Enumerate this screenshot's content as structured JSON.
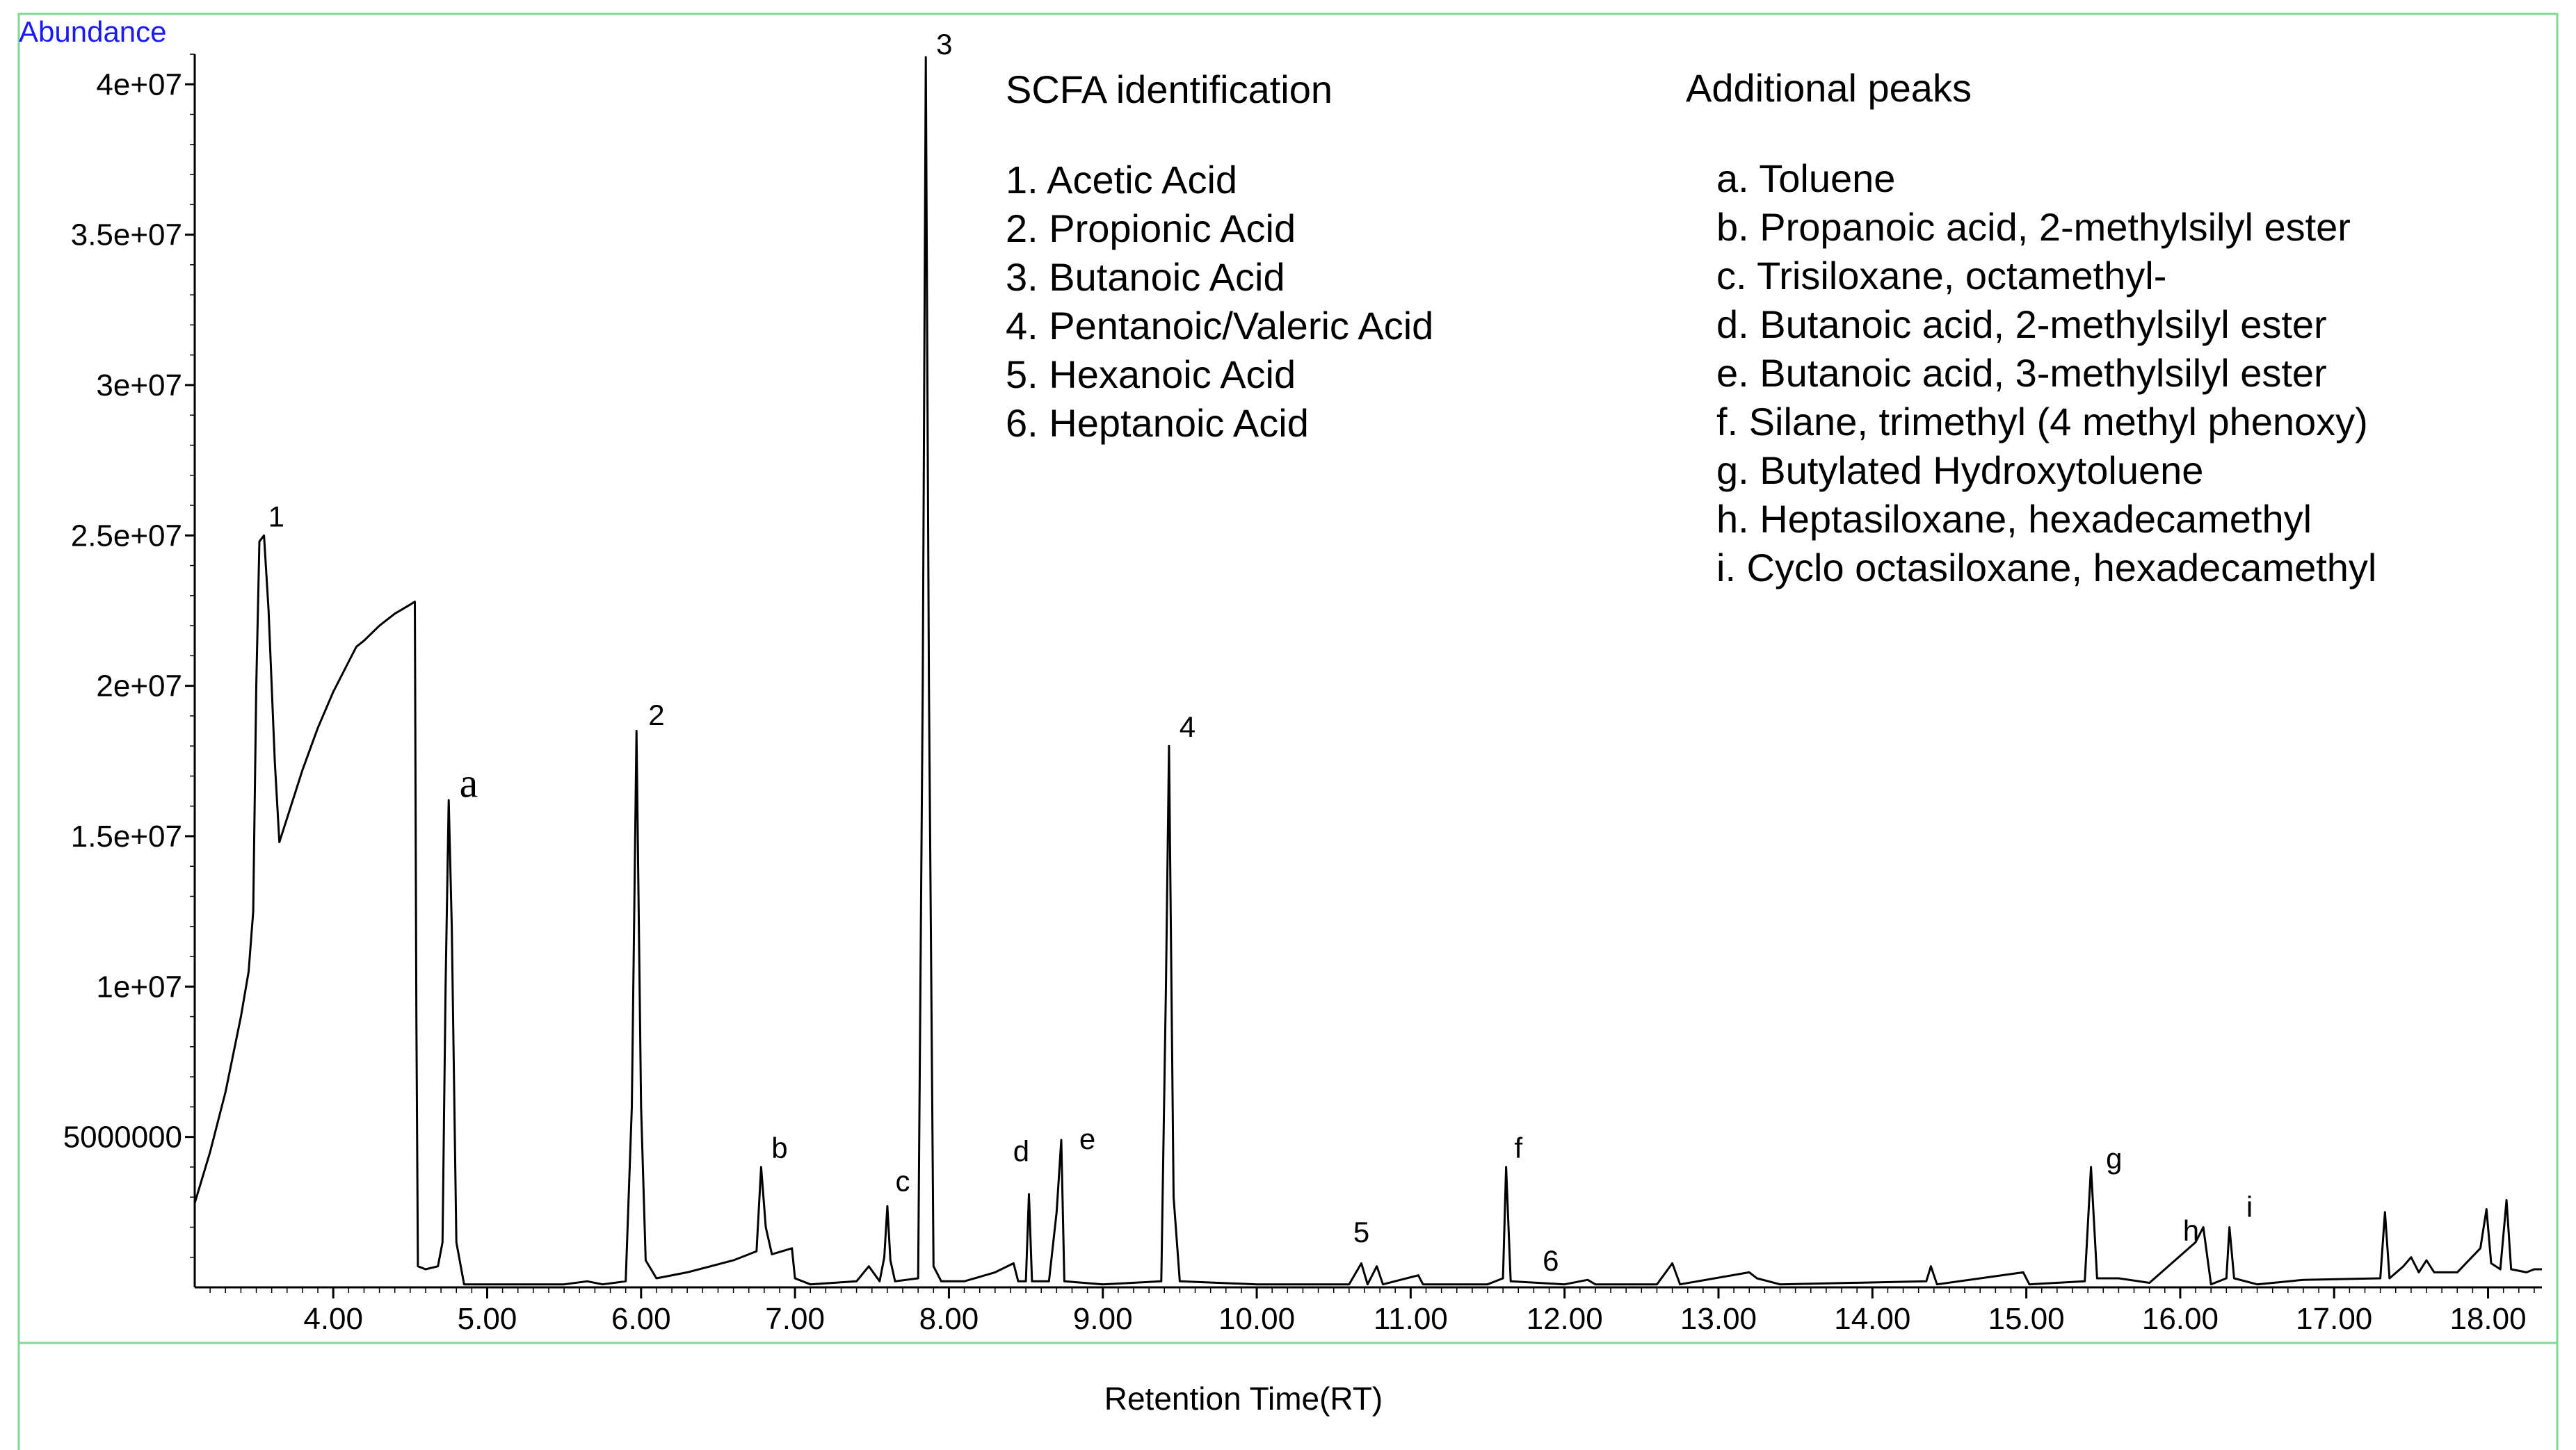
{
  "chart_data": {
    "type": "line",
    "title": "",
    "xlabel": "Retention Time(RT)",
    "ylabel": "Abundance",
    "xlim": [
      3.1,
      18.35
    ],
    "ylim": [
      0,
      41000000
    ],
    "x_ticks": [
      {
        "value": 4,
        "label": "4.00"
      },
      {
        "value": 5,
        "label": "5.00"
      },
      {
        "value": 6,
        "label": "6.00"
      },
      {
        "value": 7,
        "label": "7.00"
      },
      {
        "value": 8,
        "label": "8.00"
      },
      {
        "value": 9,
        "label": "9.00"
      },
      {
        "value": 10,
        "label": "10.00"
      },
      {
        "value": 11,
        "label": "11.00"
      },
      {
        "value": 12,
        "label": "12.00"
      },
      {
        "value": 13,
        "label": "13.00"
      },
      {
        "value": 14,
        "label": "14.00"
      },
      {
        "value": 15,
        "label": "15.00"
      },
      {
        "value": 16,
        "label": "16.00"
      },
      {
        "value": 17,
        "label": "17.00"
      },
      {
        "value": 18,
        "label": "18.00"
      }
    ],
    "y_ticks": [
      {
        "value": 5000000,
        "label": "5000000"
      },
      {
        "value": 10000000,
        "label": "1e+07"
      },
      {
        "value": 15000000,
        "label": "1.5e+07"
      },
      {
        "value": 20000000,
        "label": "2e+07"
      },
      {
        "value": 25000000,
        "label": "2.5e+07"
      },
      {
        "value": 30000000,
        "label": "3e+07"
      },
      {
        "value": 35000000,
        "label": "3.5e+07"
      },
      {
        "value": 40000000,
        "label": "4e+07"
      }
    ],
    "series": [
      {
        "points": [
          [
            3.1,
            2800000
          ],
          [
            3.2,
            4500000
          ],
          [
            3.3,
            6500000
          ],
          [
            3.4,
            9000000
          ],
          [
            3.45,
            10500000
          ],
          [
            3.48,
            12500000
          ],
          [
            3.5,
            20000000
          ],
          [
            3.52,
            24800000
          ],
          [
            3.55,
            25000000
          ],
          [
            3.58,
            22500000
          ],
          [
            3.62,
            17500000
          ],
          [
            3.65,
            14800000
          ],
          [
            3.7,
            15600000
          ],
          [
            3.8,
            17200000
          ],
          [
            3.9,
            18600000
          ],
          [
            4.0,
            19800000
          ],
          [
            4.1,
            20800000
          ],
          [
            4.15,
            21300000
          ],
          [
            4.2,
            21500000
          ],
          [
            4.3,
            22000000
          ],
          [
            4.4,
            22400000
          ],
          [
            4.5,
            22700000
          ],
          [
            4.53,
            22800000
          ],
          [
            4.54,
            9000000
          ],
          [
            4.55,
            700000
          ],
          [
            4.6,
            600000
          ],
          [
            4.68,
            700000
          ],
          [
            4.71,
            1500000
          ],
          [
            4.73,
            10000000
          ],
          [
            4.75,
            16200000
          ],
          [
            4.77,
            12000000
          ],
          [
            4.8,
            1500000
          ],
          [
            4.85,
            100000
          ],
          [
            5.0,
            100000
          ],
          [
            5.5,
            100000
          ],
          [
            5.65,
            200000
          ],
          [
            5.75,
            100000
          ],
          [
            5.9,
            200000
          ],
          [
            5.94,
            6000000
          ],
          [
            5.97,
            18500000
          ],
          [
            6.0,
            6000000
          ],
          [
            6.03,
            900000
          ],
          [
            6.1,
            300000
          ],
          [
            6.3,
            500000
          ],
          [
            6.6,
            900000
          ],
          [
            6.75,
            1200000
          ],
          [
            6.78,
            4000000
          ],
          [
            6.81,
            2000000
          ],
          [
            6.85,
            1100000
          ],
          [
            6.98,
            1300000
          ],
          [
            7.0,
            300000
          ],
          [
            7.1,
            100000
          ],
          [
            7.4,
            200000
          ],
          [
            7.48,
            700000
          ],
          [
            7.55,
            200000
          ],
          [
            7.58,
            1000000
          ],
          [
            7.6,
            2700000
          ],
          [
            7.62,
            900000
          ],
          [
            7.65,
            200000
          ],
          [
            7.8,
            300000
          ],
          [
            7.83,
            20000000
          ],
          [
            7.85,
            40900000
          ],
          [
            7.87,
            20000000
          ],
          [
            7.9,
            700000
          ],
          [
            7.95,
            200000
          ],
          [
            8.1,
            200000
          ],
          [
            8.3,
            500000
          ],
          [
            8.42,
            800000
          ],
          [
            8.45,
            200000
          ],
          [
            8.5,
            200000
          ],
          [
            8.52,
            3100000
          ],
          [
            8.54,
            200000
          ],
          [
            8.65,
            200000
          ],
          [
            8.7,
            2500000
          ],
          [
            8.73,
            4900000
          ],
          [
            8.75,
            200000
          ],
          [
            9.0,
            100000
          ],
          [
            9.38,
            200000
          ],
          [
            9.41,
            10000000
          ],
          [
            9.43,
            18000000
          ],
          [
            9.46,
            3000000
          ],
          [
            9.5,
            200000
          ],
          [
            10.0,
            100000
          ],
          [
            10.6,
            100000
          ],
          [
            10.68,
            800000
          ],
          [
            10.72,
            100000
          ],
          [
            10.78,
            700000
          ],
          [
            10.82,
            100000
          ],
          [
            11.05,
            400000
          ],
          [
            11.08,
            100000
          ],
          [
            11.5,
            100000
          ],
          [
            11.6,
            300000
          ],
          [
            11.62,
            4000000
          ],
          [
            11.65,
            200000
          ],
          [
            12.0,
            100000
          ],
          [
            12.15,
            250000
          ],
          [
            12.2,
            100000
          ],
          [
            12.6,
            100000
          ],
          [
            12.7,
            800000
          ],
          [
            12.75,
            100000
          ],
          [
            13.2,
            500000
          ],
          [
            13.25,
            300000
          ],
          [
            13.4,
            100000
          ],
          [
            14.35,
            200000
          ],
          [
            14.38,
            700000
          ],
          [
            14.42,
            100000
          ],
          [
            14.98,
            500000
          ],
          [
            15.02,
            100000
          ],
          [
            15.38,
            200000
          ],
          [
            15.42,
            4000000
          ],
          [
            15.46,
            300000
          ],
          [
            15.6,
            300000
          ],
          [
            15.8,
            150000
          ],
          [
            16.1,
            1500000
          ],
          [
            16.15,
            2000000
          ],
          [
            16.2,
            100000
          ],
          [
            16.3,
            300000
          ],
          [
            16.32,
            2000000
          ],
          [
            16.35,
            300000
          ],
          [
            16.5,
            100000
          ],
          [
            16.8,
            250000
          ],
          [
            17.3,
            300000
          ],
          [
            17.33,
            2500000
          ],
          [
            17.36,
            300000
          ],
          [
            17.45,
            700000
          ],
          [
            17.5,
            1000000
          ],
          [
            17.55,
            500000
          ],
          [
            17.6,
            900000
          ],
          [
            17.65,
            500000
          ],
          [
            17.8,
            500000
          ],
          [
            17.95,
            1300000
          ],
          [
            17.99,
            2600000
          ],
          [
            18.02,
            800000
          ],
          [
            18.08,
            600000
          ],
          [
            18.12,
            2900000
          ],
          [
            18.15,
            600000
          ],
          [
            18.25,
            500000
          ],
          [
            18.3,
            600000
          ],
          [
            18.35,
            600000
          ]
        ]
      }
    ],
    "peak_labels": [
      {
        "text": "1",
        "x": 3.63,
        "y": 25300000
      },
      {
        "text": "a",
        "x": 4.88,
        "y": 16300000,
        "style": "serif"
      },
      {
        "text": "2",
        "x": 6.1,
        "y": 18700000
      },
      {
        "text": "b",
        "x": 6.9,
        "y": 4300000
      },
      {
        "text": "c",
        "x": 7.7,
        "y": 3200000
      },
      {
        "text": "3",
        "x": 7.97,
        "y": 41000000
      },
      {
        "text": "d",
        "x": 8.47,
        "y": 4200000
      },
      {
        "text": "e",
        "x": 8.9,
        "y": 4600000
      },
      {
        "text": "4",
        "x": 9.55,
        "y": 18300000
      },
      {
        "text": "5",
        "x": 10.68,
        "y": 1500000
      },
      {
        "text": "f",
        "x": 11.7,
        "y": 4300000
      },
      {
        "text": "6",
        "x": 11.91,
        "y": 550000
      },
      {
        "text": "g",
        "x": 15.57,
        "y": 3950000
      },
      {
        "text": "h",
        "x": 16.07,
        "y": 1550000
      },
      {
        "text": "i",
        "x": 16.45,
        "y": 2350000
      }
    ],
    "annotations": {
      "scfa_title": "SCFA identification",
      "scfa_items": [
        "1.  Acetic Acid",
        "2.  Propionic Acid",
        "3.  Butanoic Acid",
        "4.  Pentanoic/Valeric Acid",
        "5.  Hexanoic Acid",
        "6.  Heptanoic Acid"
      ],
      "additional_title": "Additional peaks",
      "additional_items": [
        "a.  Toluene",
        "b.   Propanoic acid, 2-methylsilyl ester",
        "c.  Trisiloxane, octamethyl-",
        "d.  Butanoic acid, 2-methylsilyl ester",
        "e.  Butanoic acid, 3-methylsilyl ester",
        "f.   Silane, trimethyl (4 methyl phenoxy)",
        "g.  Butylated Hydroxytoluene",
        "h.  Heptasiloxane, hexadecamethyl",
        "i.   Cyclo octasiloxane, hexadecamethyl"
      ]
    },
    "colors": {
      "frame": "#7fd98f",
      "ylabel": "#1a1aff",
      "trace": "#000000"
    },
    "grid": false
  }
}
